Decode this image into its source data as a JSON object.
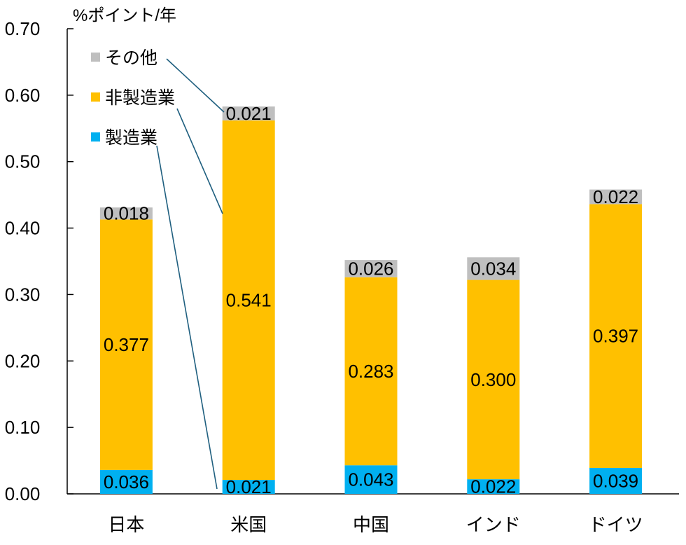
{
  "chart_data": {
    "type": "bar",
    "stacked": true,
    "title": "",
    "ylabel": "%ポイント/年",
    "xlabel": "",
    "ylim": [
      0,
      0.7
    ],
    "yticks": [
      "0.00",
      "0.10",
      "0.20",
      "0.30",
      "0.40",
      "0.50",
      "0.60",
      "0.70"
    ],
    "categories": [
      "日本",
      "米国",
      "中国",
      "インド",
      "ドイツ"
    ],
    "series": [
      {
        "name": "製造業",
        "color": "#00b0f0",
        "values": [
          0.036,
          0.021,
          0.043,
          0.022,
          0.039
        ],
        "labels": [
          "0.036",
          "0.021",
          "0.043",
          "0.022",
          "0.039"
        ]
      },
      {
        "name": "非製造業",
        "color": "#ffc000",
        "values": [
          0.377,
          0.541,
          0.283,
          0.3,
          0.397
        ],
        "labels": [
          "0.377",
          "0.541",
          "0.283",
          "0.300",
          "0.397"
        ]
      },
      {
        "name": "その他",
        "color": "#bfbfbf",
        "values": [
          0.018,
          0.021,
          0.026,
          0.034,
          0.022
        ],
        "labels": [
          "0.018",
          "0.021",
          "0.026",
          "0.034",
          "0.022"
        ]
      }
    ],
    "legend": {
      "placement": "top-left",
      "order": [
        "その他",
        "非製造業",
        "製造業"
      ]
    },
    "grid": false
  }
}
